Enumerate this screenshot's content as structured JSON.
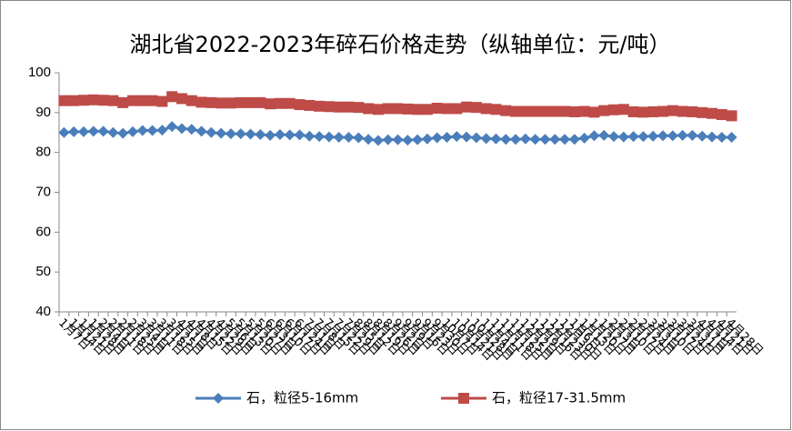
{
  "chart_data": {
    "type": "line",
    "title": "湖北省2022-2023年碎石价格走势（纵轴单位：元/吨）",
    "categories": [
      "1月7日",
      "1月14日",
      "1月21日",
      "1月28日",
      "2月4日",
      "2月11日",
      "2月18日",
      "2月25日",
      "3月4日",
      "3月11日",
      "3月18日",
      "3月25日",
      "4月1日",
      "4月8日",
      "4月15日",
      "4月22日",
      "4月29日",
      "5月6日",
      "5月13日",
      "5月20日",
      "5月27日",
      "6月3日",
      "6月10日",
      "6月17日",
      "6月24日",
      "7月1日",
      "7月8日",
      "7月15日",
      "7月22日",
      "7月29日",
      "8月5日",
      "8月12日",
      "8月19日",
      "8月26日",
      "9月2日",
      "9月9日",
      "9月16日",
      "9月23日",
      "9月30日",
      "10月7日",
      "10月14日",
      "10月21日",
      "10月28日",
      "11月4日",
      "11月11日",
      "11月18日",
      "11月25日",
      "12月2日",
      "12月9日",
      "12月16日",
      "12月23日",
      "12月30日",
      "1月6日",
      "1月13日",
      "1月20日",
      "1月27日",
      "2月3日",
      "2月10日",
      "2月17日",
      "2月24日",
      "3月3日",
      "3月10日",
      "3月17日",
      "3月24日",
      "3月31日",
      "4月7日",
      "4月14日",
      "4月21日",
      "4月28日"
    ],
    "series": [
      {
        "name": "石，粒径5-16mm",
        "color": "#4a7ebb",
        "marker": "diamond",
        "values": [
          85,
          85.2,
          85.2,
          85.3,
          85.3,
          85,
          84.8,
          85.2,
          85.5,
          85.5,
          85.6,
          86.5,
          86,
          85.8,
          85.3,
          85,
          84.8,
          84.7,
          84.7,
          84.6,
          84.5,
          84.3,
          84.5,
          84.4,
          84.4,
          84.1,
          84,
          83.9,
          83.8,
          83.8,
          83.7,
          83.3,
          83,
          83.2,
          83.2,
          83.1,
          83.2,
          83.4,
          83.7,
          83.8,
          84,
          83.9,
          83.7,
          83.5,
          83.4,
          83.3,
          83.3,
          83.4,
          83.3,
          83.3,
          83.3,
          83.3,
          83.3,
          83.6,
          84.2,
          84.3,
          84,
          83.9,
          84,
          84,
          84.1,
          84.2,
          84.2,
          84.3,
          84.3,
          84.1,
          83.9,
          83.8,
          83.8
        ]
      },
      {
        "name": "石，粒径17-31.5mm",
        "color": "#be4b48",
        "marker": "square",
        "values": [
          93,
          93,
          93.1,
          93.2,
          93.1,
          93,
          92.5,
          93,
          93,
          93,
          92.8,
          94,
          93.5,
          93,
          92.6,
          92.5,
          92.4,
          92.4,
          92.5,
          92.5,
          92.5,
          92.2,
          92.3,
          92.3,
          92,
          91.8,
          91.6,
          91.5,
          91.4,
          91.4,
          91.3,
          91,
          90.8,
          91,
          91,
          90.9,
          90.8,
          90.8,
          91.1,
          91,
          91,
          91.4,
          91.3,
          91,
          90.8,
          90.5,
          90.3,
          90.3,
          90.3,
          90.3,
          90.3,
          90.3,
          90.2,
          90.3,
          90.1,
          90.5,
          90.7,
          90.8,
          90.2,
          90.1,
          90.2,
          90.3,
          90.5,
          90.3,
          90.2,
          90,
          89.8,
          89.5,
          89.2
        ]
      }
    ],
    "ylim": [
      40,
      100
    ],
    "yticks": [
      40,
      50,
      60,
      70,
      80,
      90,
      100
    ],
    "grid": false,
    "legend": "bottom"
  }
}
